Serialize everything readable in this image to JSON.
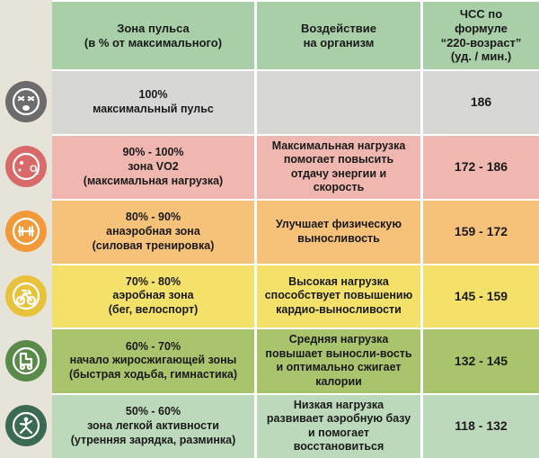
{
  "sidebar_bg": "#e6e3d8",
  "header_bg": "#a9cfa8",
  "headers": {
    "col1": "Зона пульса\n(в % от максимального)",
    "col2": "Воздействие\nна организм",
    "col3": "ЧСС по\nформуле\n“220-возраст”\n(уд. / мин.)"
  },
  "rows": [
    {
      "icon": "face-exhausted",
      "icon_bg": "#6c6c6c",
      "row_bg": "#d7d8d6",
      "pct": "100%",
      "zone": "максимальный пульс",
      "sub": "",
      "effect": "",
      "hr": "186"
    },
    {
      "icon": "o2-bubble",
      "icon_bg": "#d96a6a",
      "row_bg": "#f0b7b0",
      "pct": "90% - 100%",
      "zone": "зона VO2",
      "sub": "(максимальная нагрузка)",
      "effect": "Максимальная нагрузка помогает повысить отдачу энергии и скорость",
      "hr": "172 - 186"
    },
    {
      "icon": "dumbbell",
      "icon_bg": "#f29a3a",
      "row_bg": "#f6c178",
      "pct": "80% - 90%",
      "zone": "анаэробная зона",
      "sub": "(силовая тренировка)",
      "effect": "Улучшает физическую выносливость",
      "hr": "159 - 172"
    },
    {
      "icon": "bicycle",
      "icon_bg": "#e9c23b",
      "row_bg": "#f4e16a",
      "pct": "70% - 80%",
      "zone": "аэробная зона",
      "sub": "(бег, велоспорт)",
      "effect": "Высокая нагрузка способствует повышению кардио-выносливости",
      "hr": "145 - 159"
    },
    {
      "icon": "rollerskate",
      "icon_bg": "#5a8a4a",
      "row_bg": "#a9c46d",
      "pct": "60% - 70%",
      "zone": "начало жиросжигающей зоны",
      "sub": "(быстрая ходьба, гимнастика)",
      "effect": "Средняя нагрузка повышает выносли-вость и оптимально сжигает калории",
      "hr": "132 - 145"
    },
    {
      "icon": "yoga-pose",
      "icon_bg": "#3a6a52",
      "row_bg": "#bcd9bb",
      "pct": "50% - 60%",
      "zone": "зона легкой активности",
      "sub": "(утренняя зарядка, разминка)",
      "effect": "Низкая нагрузка развивает аэробную базу и помогает восстановиться",
      "hr": "118 - 132"
    }
  ]
}
